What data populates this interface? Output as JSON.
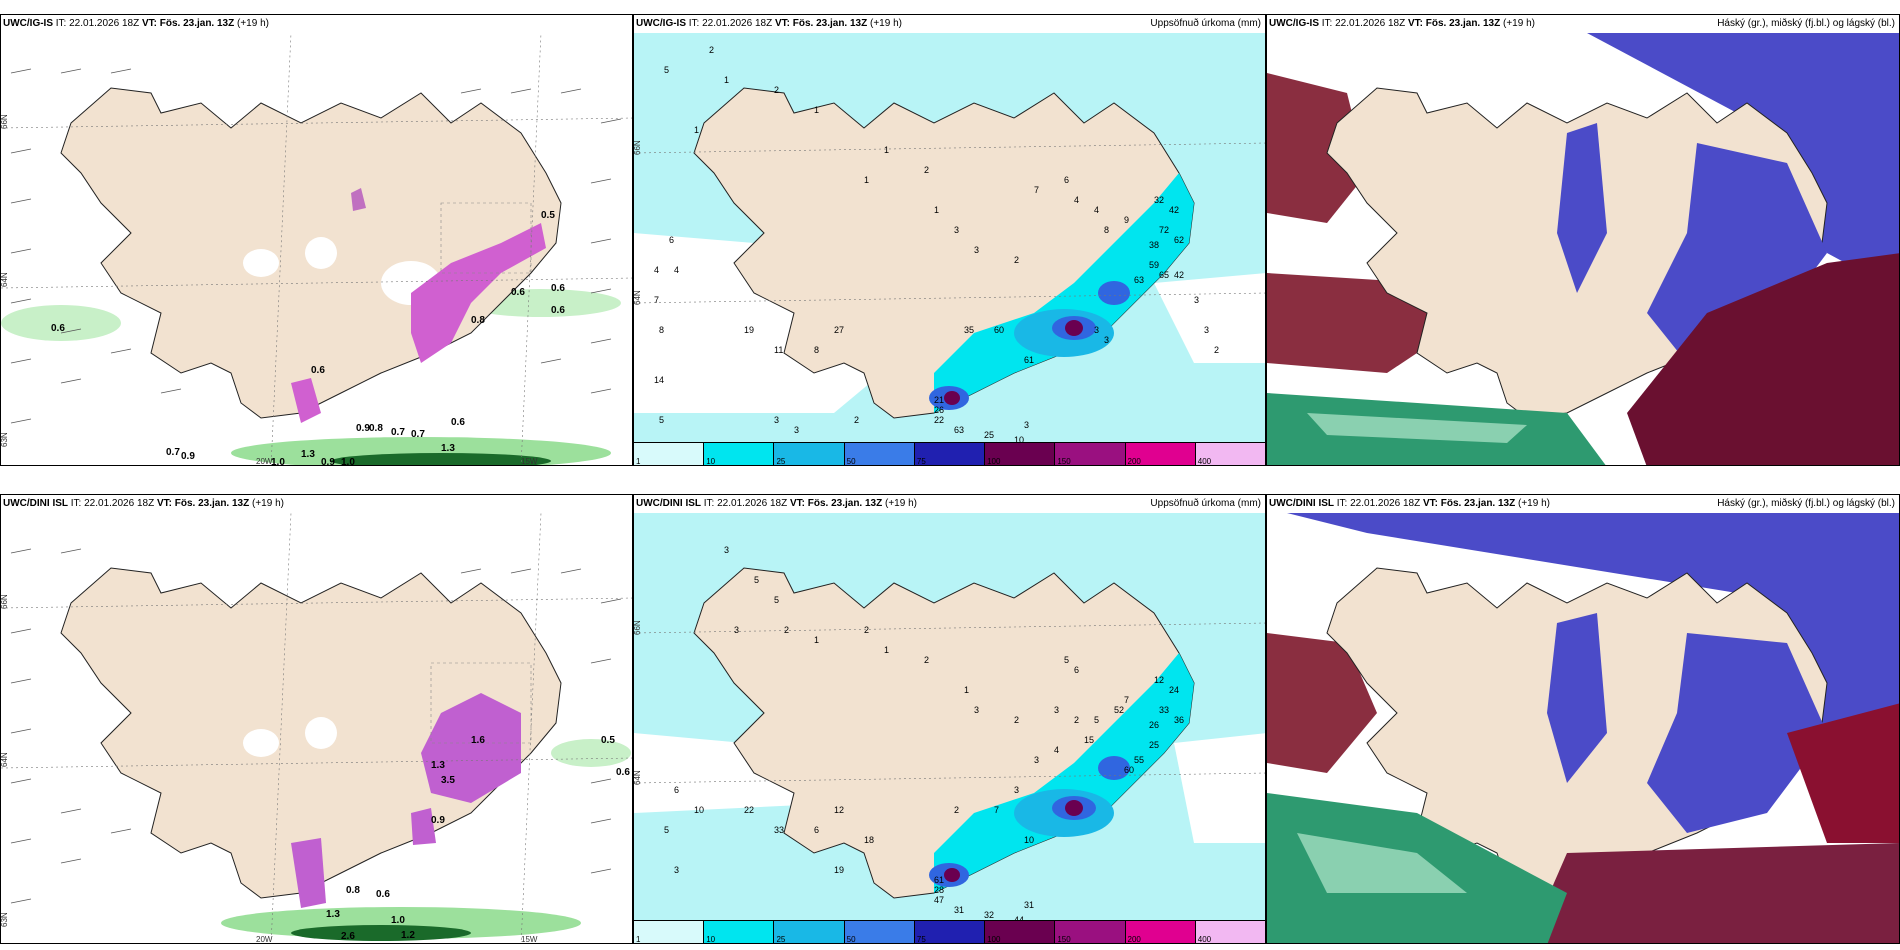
{
  "colors": {
    "land": "#f2e2d0",
    "precip_light": "#b8f4f6",
    "precip_cyan": "#00e5ef",
    "precip_mid": "#19b8e6",
    "precip_blue": "#3066e0",
    "precip_navy": "#2020b0",
    "precip_dark": "#6a0050",
    "precip_purple": "#9a1080",
    "precip_magenta": "#e00090",
    "precip_pink": "#f2b8f2",
    "cloud_high": "#6a1030",
    "cloud_mid": "#4b4bc8",
    "cloud_low": "#2e9a70",
    "hatch": "#888888",
    "wind_green": "#7cd07c"
  },
  "legend": {
    "ticks": [
      "1",
      "10",
      "25",
      "50",
      "75",
      "100",
      "150",
      "200",
      "400"
    ],
    "colors": [
      "#d8fafb",
      "#00e5ef",
      "#19b8e6",
      "#3a7ce8",
      "#2020b0",
      "#6a0050",
      "#9a1080",
      "#e00090",
      "#f2b8f2"
    ]
  },
  "axes": {
    "lat_66": "66N",
    "lat_64": "64N",
    "lat_63": "63N",
    "lon_20": "20W",
    "lon_15": "15W"
  },
  "row_top": {
    "model": "UWC/IG-IS",
    "it_label": "IT:",
    "it_value": "22.01.2026 18Z",
    "vt_label": "VT:",
    "vt_value": "Fös. 23.jan. 13Z",
    "lead": "(+19 h)",
    "precip_title": "Uppsöfnuð úrkoma (mm)",
    "cloud_title": "Háský (gr.), miðský (fj.bl.) og lágský (bl.)",
    "wind_values": [
      "0.6",
      "0.6",
      "0.6",
      "0.9",
      "0.8",
      "0.7",
      "0.7",
      "0.6",
      "0.6",
      "0.7",
      "0.9",
      "1.3",
      "1.0",
      "0.9",
      "1.0",
      "1.3",
      "0.8",
      "0.6",
      "0.5"
    ],
    "precip_values": [
      "5",
      "2",
      "1",
      "2",
      "1",
      "1",
      "6",
      "4",
      "4",
      "7",
      "8",
      "14",
      "5",
      "3",
      "3",
      "2",
      "1",
      "1",
      "2",
      "1",
      "3",
      "3",
      "2",
      "7",
      "6",
      "4",
      "4",
      "8",
      "9",
      "32",
      "42",
      "72",
      "62",
      "38",
      "59",
      "65",
      "42",
      "63",
      "3",
      "3",
      "2",
      "3",
      "3",
      "35",
      "60",
      "61",
      "27",
      "8",
      "11",
      "19",
      "26",
      "22",
      "21",
      "63",
      "25",
      "10",
      "3"
    ]
  },
  "row_bottom": {
    "model": "UWC/DINI ISL",
    "it_label": "IT:",
    "it_value": "22.01.2026 18Z",
    "vt_label": "VT:",
    "vt_value": "Fös. 23.jan. 13Z",
    "lead": "(+19 h)",
    "precip_title": "Uppsöfnuð úrkoma (mm)",
    "cloud_title": "Háský (gr.), miðský (fj.bl.) og lágský (bl.)",
    "wind_values": [
      "0.5",
      "0.6",
      "0.8",
      "0.6",
      "1.3",
      "1.0",
      "1.2",
      "2.6",
      "1.6",
      "1.3",
      "3.5",
      "0.9"
    ],
    "precip_values": [
      "3",
      "5",
      "5",
      "3",
      "2",
      "1",
      "2",
      "1",
      "2",
      "1",
      "3",
      "2",
      "3",
      "2",
      "5",
      "7",
      "12",
      "24",
      "33",
      "36",
      "26",
      "25",
      "55",
      "60",
      "52",
      "15",
      "6",
      "5",
      "4",
      "3",
      "3",
      "2",
      "7",
      "10",
      "12",
      "6",
      "33",
      "22",
      "28",
      "47",
      "61",
      "31",
      "32",
      "44",
      "31",
      "18",
      "19",
      "6",
      "10",
      "5",
      "3"
    ]
  }
}
